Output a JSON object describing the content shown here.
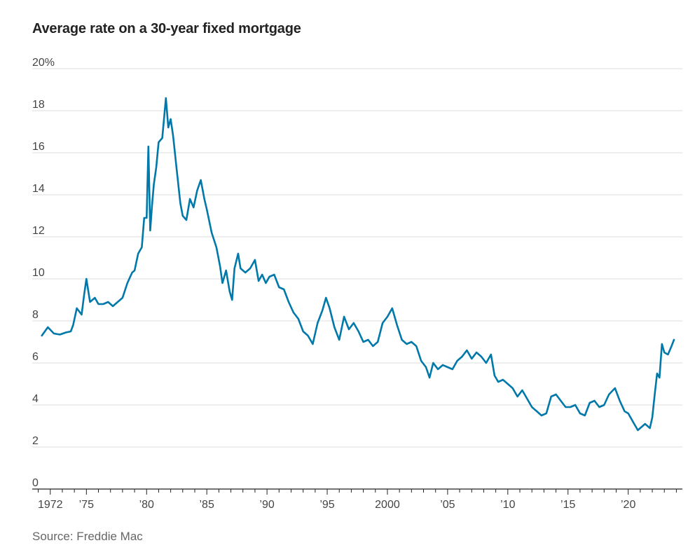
{
  "title": "Average rate on a 30-year fixed mortgage",
  "source": "Source: Freddie Mac",
  "colors": {
    "line": "#0078aa",
    "grid": "#dddddd",
    "axis": "#222222",
    "text": "#444444"
  },
  "chart_data": {
    "type": "line",
    "title": "Average rate on a 30-year fixed mortgage",
    "xlabel": "",
    "ylabel": "",
    "xlim": [
      1970.5,
      2024.5
    ],
    "ylim": [
      0,
      20
    ],
    "grid": true,
    "y_ticks": [
      {
        "value": 0,
        "label": "0"
      },
      {
        "value": 2,
        "label": "2"
      },
      {
        "value": 4,
        "label": "4"
      },
      {
        "value": 6,
        "label": "6"
      },
      {
        "value": 8,
        "label": "8"
      },
      {
        "value": 10,
        "label": "10"
      },
      {
        "value": 12,
        "label": "12"
      },
      {
        "value": 14,
        "label": "14"
      },
      {
        "value": 16,
        "label": "16"
      },
      {
        "value": 18,
        "label": "18"
      },
      {
        "value": 20,
        "label": "20%"
      }
    ],
    "x_ticks": [
      {
        "value": 1972,
        "label": "1972"
      },
      {
        "value": 1975,
        "label": "’75"
      },
      {
        "value": 1980,
        "label": "’80"
      },
      {
        "value": 1985,
        "label": "’85"
      },
      {
        "value": 1990,
        "label": "’90"
      },
      {
        "value": 1995,
        "label": "’95"
      },
      {
        "value": 2000,
        "label": "2000"
      },
      {
        "value": 2005,
        "label": "’05"
      },
      {
        "value": 2010,
        "label": "’10"
      },
      {
        "value": 2015,
        "label": "’15"
      },
      {
        "value": 2020,
        "label": "’20"
      }
    ],
    "series": [
      {
        "name": "30-year fixed mortgage rate",
        "x": [
          1971.3,
          1971.8,
          1972.3,
          1972.8,
          1973.3,
          1973.7,
          1973.9,
          1974.2,
          1974.6,
          1974.8,
          1975.0,
          1975.3,
          1975.7,
          1976.0,
          1976.4,
          1976.8,
          1977.2,
          1977.6,
          1978.0,
          1978.4,
          1978.8,
          1979.0,
          1979.3,
          1979.6,
          1979.8,
          1980.0,
          1980.15,
          1980.3,
          1980.45,
          1980.6,
          1980.8,
          1981.0,
          1981.3,
          1981.6,
          1981.8,
          1982.0,
          1982.2,
          1982.5,
          1982.8,
          1983.0,
          1983.3,
          1983.6,
          1983.9,
          1984.2,
          1984.5,
          1984.8,
          1985.0,
          1985.4,
          1985.8,
          1986.1,
          1986.3,
          1986.6,
          1986.9,
          1987.1,
          1987.3,
          1987.6,
          1987.8,
          1988.2,
          1988.6,
          1989.0,
          1989.3,
          1989.6,
          1989.9,
          1990.2,
          1990.6,
          1991.0,
          1991.4,
          1991.8,
          1992.2,
          1992.6,
          1993.0,
          1993.4,
          1993.8,
          1994.2,
          1994.6,
          1994.9,
          1995.2,
          1995.6,
          1996.0,
          1996.4,
          1996.8,
          1997.2,
          1997.6,
          1998.0,
          1998.4,
          1998.8,
          1999.2,
          1999.6,
          2000.0,
          2000.4,
          2000.8,
          2001.2,
          2001.6,
          2002.0,
          2002.4,
          2002.8,
          2003.2,
          2003.5,
          2003.8,
          2004.2,
          2004.6,
          2005.0,
          2005.4,
          2005.8,
          2006.2,
          2006.6,
          2007.0,
          2007.4,
          2007.8,
          2008.2,
          2008.6,
          2008.9,
          2009.2,
          2009.6,
          2010.0,
          2010.4,
          2010.8,
          2011.2,
          2011.6,
          2012.0,
          2012.4,
          2012.8,
          2013.2,
          2013.6,
          2014.0,
          2014.4,
          2014.8,
          2015.2,
          2015.6,
          2016.0,
          2016.4,
          2016.8,
          2017.2,
          2017.6,
          2018.0,
          2018.4,
          2018.9,
          2019.3,
          2019.7,
          2020.0,
          2020.4,
          2020.8,
          2021.0,
          2021.4,
          2021.8,
          2022.0,
          2022.2,
          2022.4,
          2022.6,
          2022.8,
          2023.0,
          2023.3,
          2023.6,
          2023.8
        ],
        "values": [
          7.3,
          7.7,
          7.4,
          7.35,
          7.45,
          7.5,
          7.8,
          8.6,
          8.3,
          9.2,
          10.0,
          8.9,
          9.1,
          8.8,
          8.8,
          8.9,
          8.7,
          8.9,
          9.1,
          9.8,
          10.3,
          10.4,
          11.2,
          11.5,
          12.9,
          12.9,
          16.3,
          12.3,
          13.5,
          14.5,
          15.3,
          16.5,
          16.7,
          18.6,
          17.2,
          17.6,
          16.8,
          15.2,
          13.6,
          13.0,
          12.8,
          13.8,
          13.4,
          14.2,
          14.7,
          13.8,
          13.3,
          12.2,
          11.5,
          10.6,
          9.8,
          10.4,
          9.4,
          9.0,
          10.5,
          11.2,
          10.5,
          10.3,
          10.5,
          10.9,
          9.9,
          10.2,
          9.8,
          10.1,
          10.2,
          9.6,
          9.5,
          8.9,
          8.4,
          8.1,
          7.5,
          7.3,
          6.9,
          7.9,
          8.5,
          9.1,
          8.6,
          7.7,
          7.1,
          8.2,
          7.6,
          7.9,
          7.5,
          7.0,
          7.1,
          6.8,
          7.0,
          7.9,
          8.2,
          8.6,
          7.8,
          7.1,
          6.9,
          7.0,
          6.8,
          6.1,
          5.8,
          5.3,
          6.0,
          5.7,
          5.9,
          5.8,
          5.7,
          6.1,
          6.3,
          6.6,
          6.2,
          6.5,
          6.3,
          6.0,
          6.4,
          5.4,
          5.1,
          5.2,
          5.0,
          4.8,
          4.4,
          4.7,
          4.3,
          3.9,
          3.7,
          3.5,
          3.6,
          4.4,
          4.5,
          4.2,
          3.9,
          3.9,
          4.0,
          3.6,
          3.5,
          4.1,
          4.2,
          3.9,
          4.0,
          4.5,
          4.8,
          4.2,
          3.7,
          3.6,
          3.2,
          2.8,
          2.9,
          3.1,
          2.9,
          3.4,
          4.5,
          5.5,
          5.3,
          6.9,
          6.5,
          6.4,
          6.8,
          7.1
        ]
      }
    ]
  }
}
